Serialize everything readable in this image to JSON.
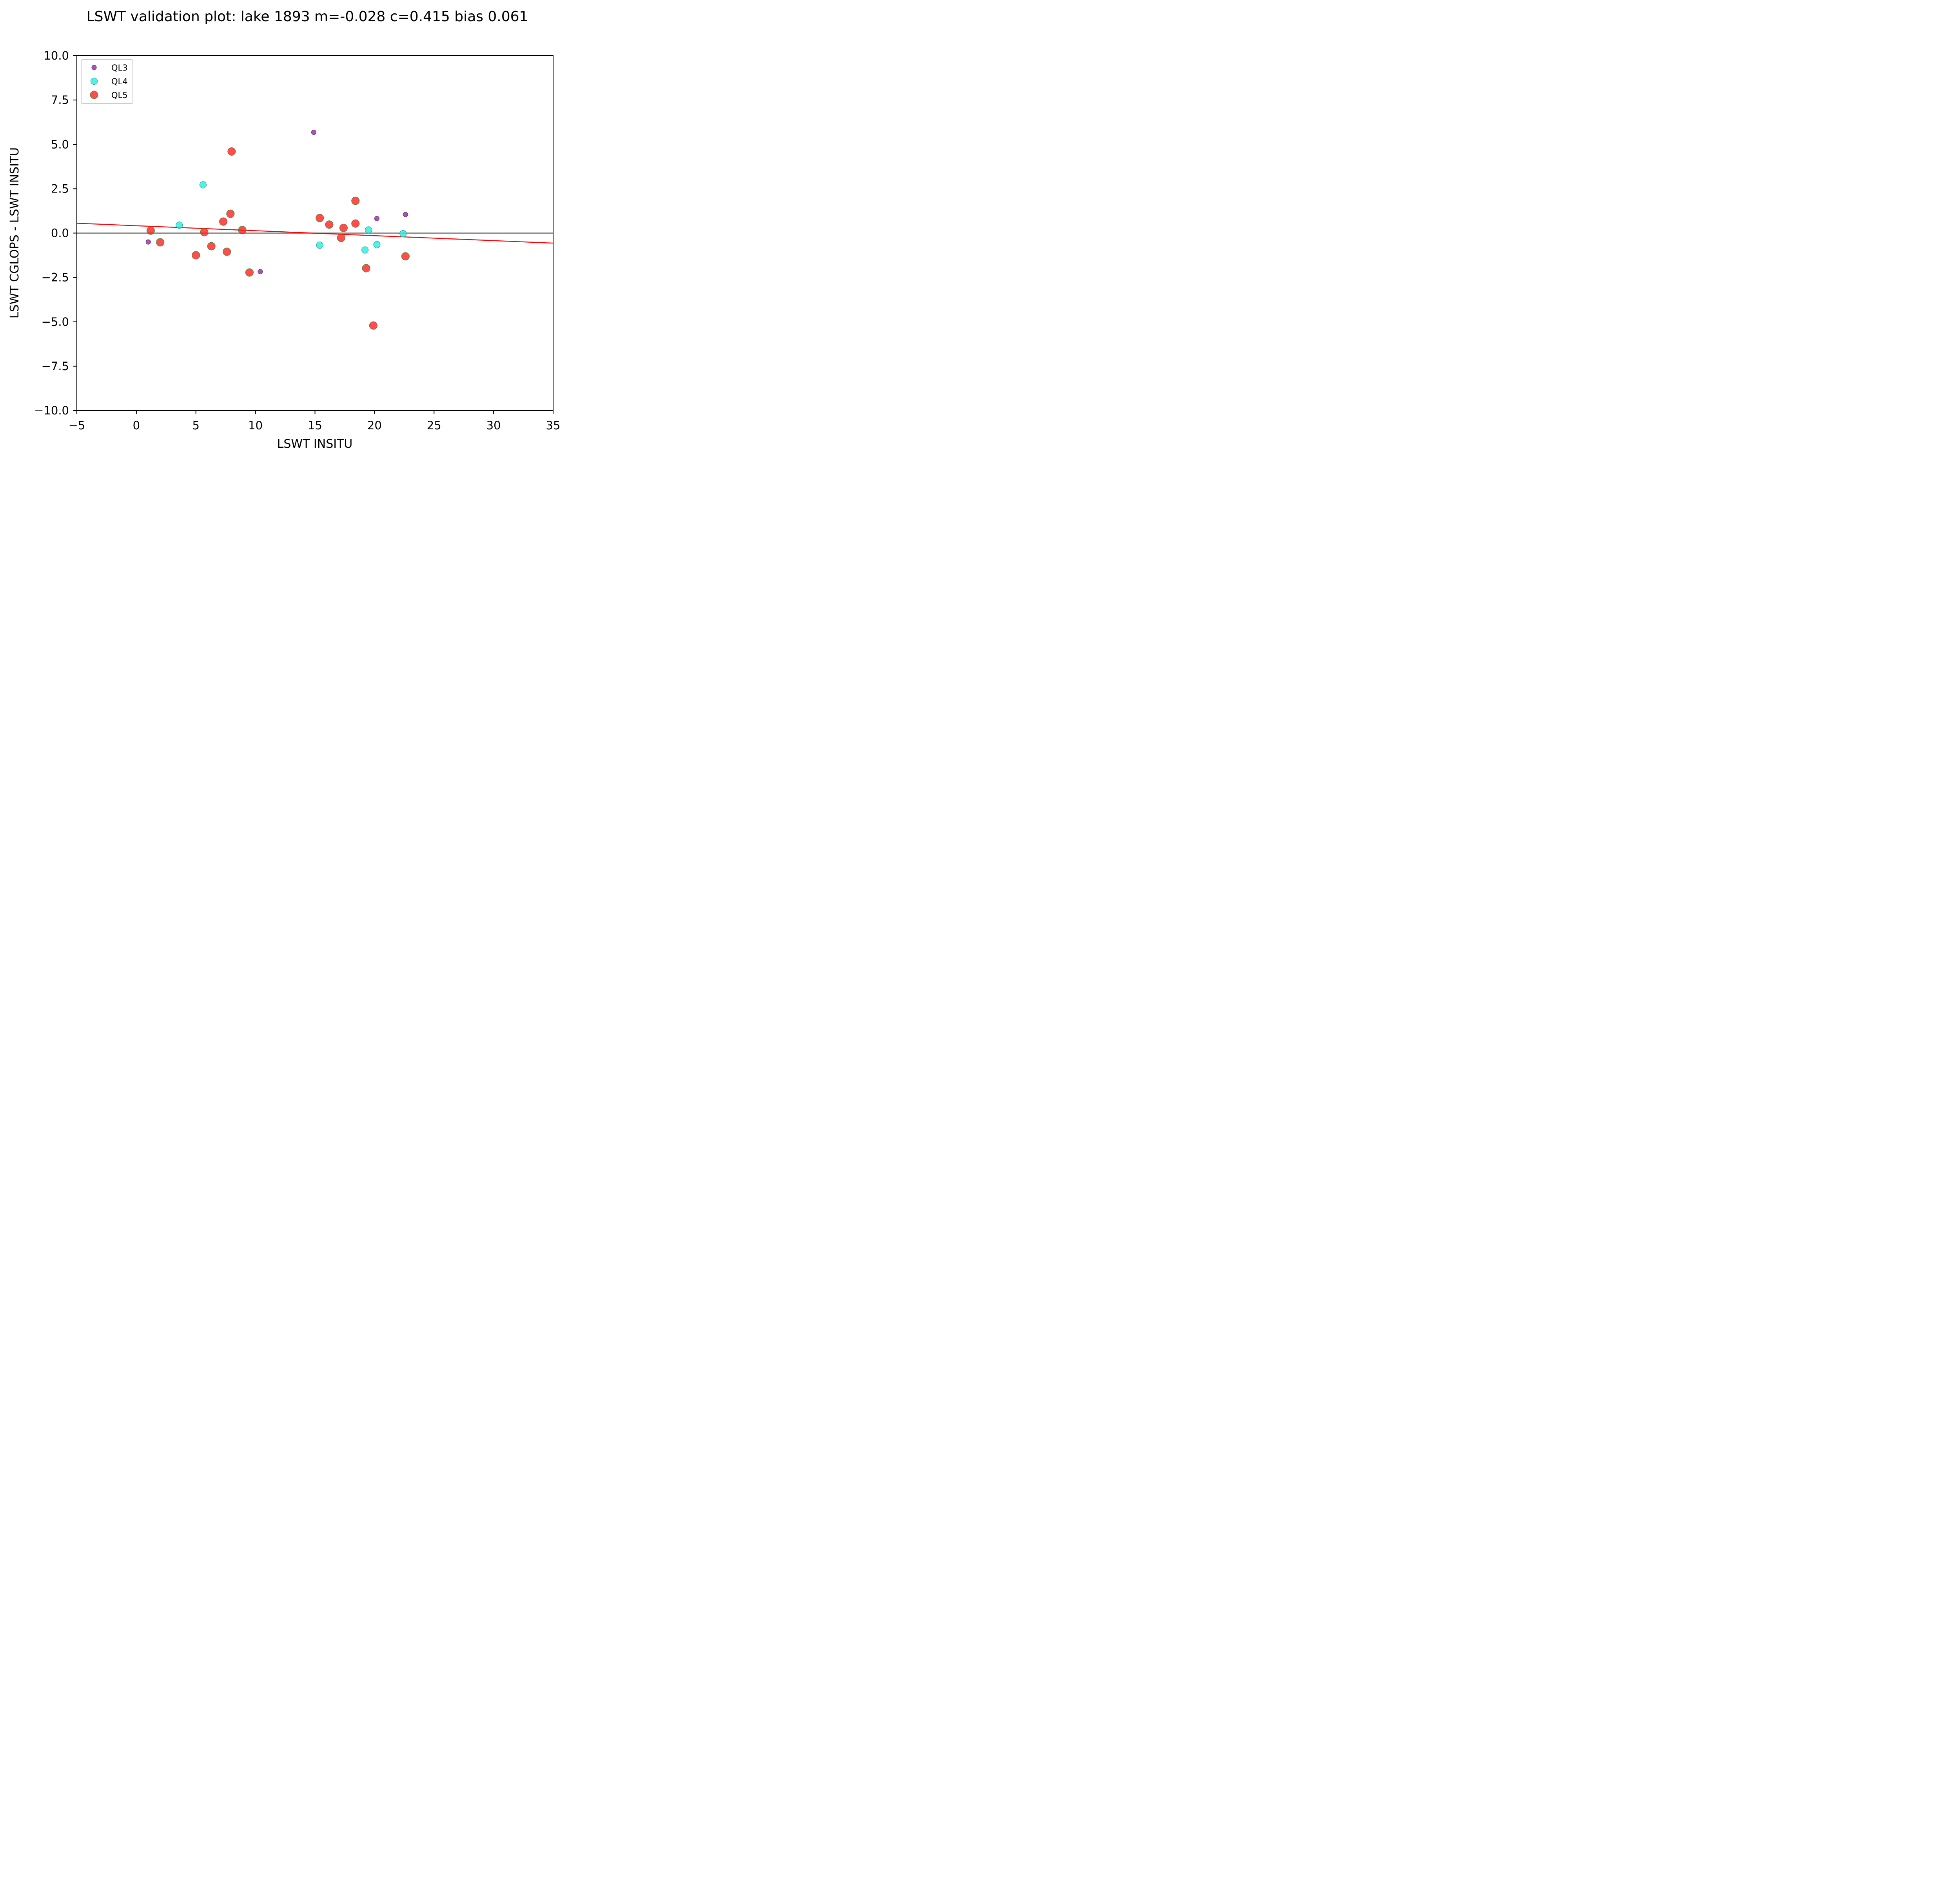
{
  "chart_data": {
    "type": "scatter",
    "title": "LSWT validation plot: lake 1893 m=-0.028 c=0.415 bias 0.061",
    "xlabel": "LSWT INSITU",
    "ylabel": "LSWT CGLOPS - LSWT INSITU",
    "xlim": [
      -5,
      35
    ],
    "ylim": [
      -10,
      10
    ],
    "xticks": [
      -5,
      0,
      5,
      10,
      15,
      20,
      25,
      30,
      35
    ],
    "xtick_labels": [
      "−5",
      "0",
      "5",
      "10",
      "15",
      "20",
      "25",
      "30",
      "35"
    ],
    "yticks": [
      -10,
      -7.5,
      -5,
      -2.5,
      0,
      2.5,
      5,
      7.5,
      10
    ],
    "ytick_labels": [
      "−10.0",
      "−7.5",
      "−5.0",
      "−2.5",
      "0.0",
      "2.5",
      "5.0",
      "7.5",
      "10.0"
    ],
    "grid": false,
    "legend_position": "top-left",
    "series": [
      {
        "name": "QL3",
        "color": "#8b2d9e",
        "points": [
          {
            "x": 1.0,
            "y": -0.5
          },
          {
            "x": 10.4,
            "y": -2.17
          },
          {
            "x": 14.9,
            "y": 5.68
          },
          {
            "x": 20.2,
            "y": 0.82
          },
          {
            "x": 22.6,
            "y": 1.05
          }
        ]
      },
      {
        "name": "QL4",
        "color": "#22f0e0",
        "points": [
          {
            "x": 3.6,
            "y": 0.45
          },
          {
            "x": 5.6,
            "y": 2.72
          },
          {
            "x": 15.4,
            "y": -0.68
          },
          {
            "x": 19.2,
            "y": -0.95
          },
          {
            "x": 19.5,
            "y": 0.18
          },
          {
            "x": 20.2,
            "y": -0.65
          },
          {
            "x": 22.4,
            "y": -0.03
          }
        ]
      },
      {
        "name": "QL5",
        "color": "#ff1f1f",
        "points": [
          {
            "x": 1.2,
            "y": 0.14
          },
          {
            "x": 2.0,
            "y": -0.52
          },
          {
            "x": 5.0,
            "y": -1.25
          },
          {
            "x": 5.7,
            "y": 0.05
          },
          {
            "x": 6.3,
            "y": -0.74
          },
          {
            "x": 7.3,
            "y": 0.65
          },
          {
            "x": 7.6,
            "y": -1.05
          },
          {
            "x": 7.9,
            "y": 1.09
          },
          {
            "x": 8.0,
            "y": 4.6
          },
          {
            "x": 8.9,
            "y": 0.17
          },
          {
            "x": 9.5,
            "y": -2.22
          },
          {
            "x": 15.4,
            "y": 0.85
          },
          {
            "x": 16.2,
            "y": 0.48
          },
          {
            "x": 17.2,
            "y": -0.27
          },
          {
            "x": 17.4,
            "y": 0.29
          },
          {
            "x": 18.4,
            "y": 1.82
          },
          {
            "x": 18.4,
            "y": 0.54
          },
          {
            "x": 19.3,
            "y": -1.98
          },
          {
            "x": 19.9,
            "y": -5.21
          },
          {
            "x": 22.6,
            "y": -1.31
          }
        ]
      }
    ],
    "reference_lines": [
      {
        "kind": "zero",
        "y": 0,
        "color": "#666666"
      },
      {
        "kind": "fit",
        "slope": -0.028,
        "intercept": 0.415,
        "color": "#ff0000"
      }
    ]
  }
}
